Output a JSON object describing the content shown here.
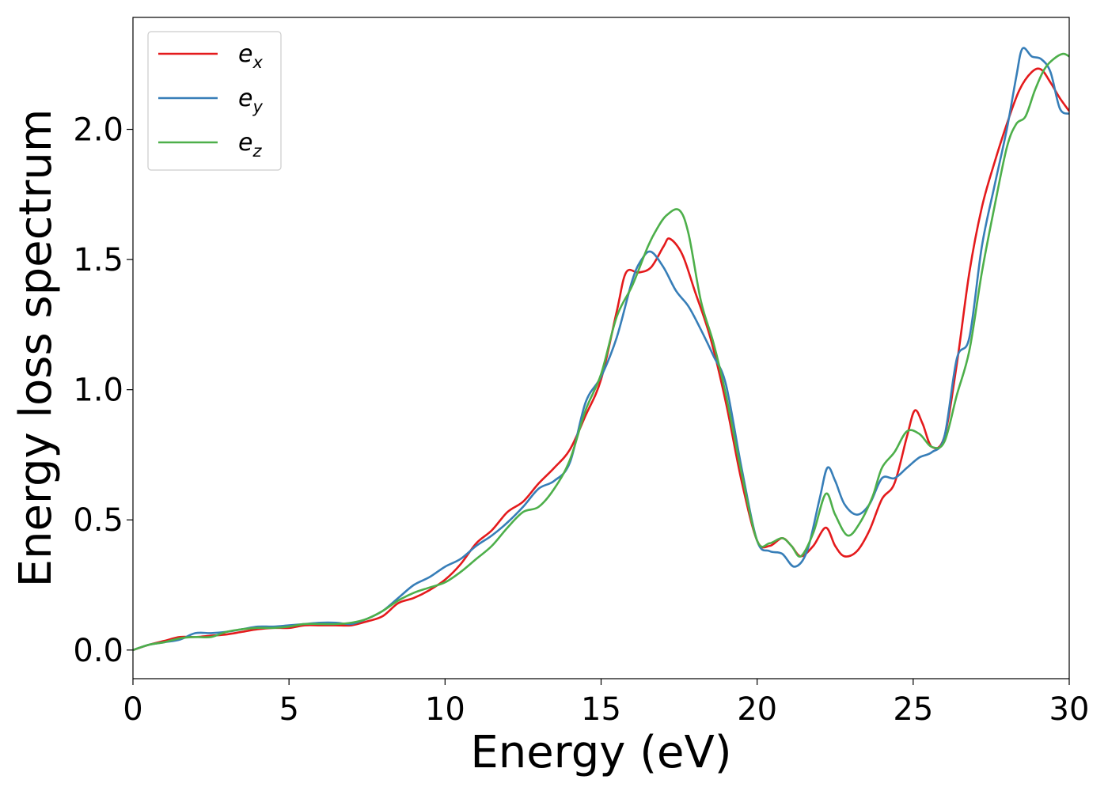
{
  "chart_data": {
    "type": "line",
    "title": "",
    "xlabel": "Energy (eV)",
    "ylabel": "Energy loss spectrum",
    "xlim": [
      0,
      30
    ],
    "ylim": [
      -0.11,
      2.43
    ],
    "xticks": [
      0,
      5,
      10,
      15,
      20,
      25,
      30
    ],
    "yticks": [
      0.0,
      0.5,
      1.0,
      1.5,
      2.0
    ],
    "xtick_labels": [
      "0",
      "5",
      "10",
      "15",
      "20",
      "25",
      "30"
    ],
    "ytick_labels": [
      "0.0",
      "0.5",
      "1.0",
      "1.5",
      "2.0"
    ],
    "grid": false,
    "legend_position": "top-left",
    "series": [
      {
        "name": "e_x",
        "label_base": "e",
        "label_sub": "x",
        "color": "#e41a1c",
        "x": [
          0,
          0.5,
          1,
          1.5,
          2,
          2.5,
          3,
          3.5,
          4,
          4.5,
          5,
          5.5,
          6,
          6.5,
          7,
          7.5,
          8,
          8.5,
          9,
          9.5,
          10,
          10.5,
          11,
          11.5,
          12,
          12.5,
          13,
          13.5,
          14,
          14.5,
          15,
          15.5,
          15.8,
          16.2,
          16.6,
          17,
          17.2,
          17.6,
          18,
          18.5,
          19,
          19.5,
          20,
          20.4,
          20.8,
          21.1,
          21.4,
          21.8,
          22.2,
          22.5,
          22.8,
          23.2,
          23.6,
          24,
          24.4,
          24.8,
          25.05,
          25.3,
          25.6,
          26,
          26.4,
          26.8,
          27.2,
          27.6,
          28,
          28.4,
          28.8,
          29.1,
          29.4,
          29.7,
          30
        ],
        "y": [
          0.0,
          0.02,
          0.035,
          0.05,
          0.05,
          0.055,
          0.06,
          0.07,
          0.08,
          0.085,
          0.085,
          0.095,
          0.095,
          0.095,
          0.095,
          0.11,
          0.13,
          0.18,
          0.2,
          0.23,
          0.27,
          0.33,
          0.41,
          0.46,
          0.53,
          0.57,
          0.64,
          0.7,
          0.77,
          0.9,
          1.04,
          1.3,
          1.45,
          1.45,
          1.47,
          1.55,
          1.58,
          1.52,
          1.38,
          1.2,
          0.95,
          0.65,
          0.42,
          0.4,
          0.43,
          0.4,
          0.36,
          0.4,
          0.47,
          0.4,
          0.36,
          0.38,
          0.46,
          0.58,
          0.64,
          0.82,
          0.92,
          0.87,
          0.78,
          0.82,
          1.1,
          1.45,
          1.7,
          1.87,
          2.02,
          2.15,
          2.22,
          2.23,
          2.18,
          2.12,
          2.07
        ]
      },
      {
        "name": "e_y",
        "label_base": "e",
        "label_sub": "y",
        "color": "#377eb8",
        "x": [
          0,
          0.5,
          1,
          1.5,
          2,
          2.5,
          3,
          3.5,
          4,
          4.5,
          5,
          5.5,
          6,
          6.5,
          7,
          7.5,
          8,
          8.5,
          9,
          9.5,
          10,
          10.5,
          11,
          11.5,
          12,
          12.5,
          13,
          13.5,
          14,
          14.5,
          15,
          15.5,
          16,
          16.3,
          16.6,
          17,
          17.4,
          17.8,
          18.2,
          18.6,
          19,
          19.5,
          20,
          20.4,
          20.8,
          21.2,
          21.6,
          22,
          22.25,
          22.5,
          22.8,
          23.2,
          23.6,
          24,
          24.4,
          24.8,
          25.2,
          25.6,
          26,
          26.4,
          26.8,
          27.2,
          27.6,
          28,
          28.3,
          28.5,
          28.8,
          29.1,
          29.4,
          29.7,
          30
        ],
        "y": [
          0.0,
          0.02,
          0.03,
          0.04,
          0.065,
          0.065,
          0.07,
          0.08,
          0.09,
          0.09,
          0.095,
          0.1,
          0.105,
          0.105,
          0.1,
          0.12,
          0.15,
          0.2,
          0.25,
          0.28,
          0.32,
          0.35,
          0.4,
          0.44,
          0.49,
          0.55,
          0.62,
          0.65,
          0.72,
          0.95,
          1.05,
          1.2,
          1.42,
          1.5,
          1.53,
          1.47,
          1.38,
          1.32,
          1.23,
          1.13,
          1.02,
          0.7,
          0.42,
          0.38,
          0.37,
          0.32,
          0.38,
          0.58,
          0.7,
          0.65,
          0.56,
          0.52,
          0.56,
          0.66,
          0.66,
          0.7,
          0.74,
          0.76,
          0.82,
          1.12,
          1.2,
          1.55,
          1.78,
          2.0,
          2.2,
          2.31,
          2.28,
          2.27,
          2.22,
          2.08,
          2.06
        ]
      },
      {
        "name": "e_z",
        "label_base": "e",
        "label_sub": "z",
        "color": "#4daf4a",
        "x": [
          0,
          0.5,
          1,
          1.5,
          2,
          2.5,
          3,
          3.5,
          4,
          4.5,
          5,
          5.5,
          6,
          6.5,
          7,
          7.5,
          8,
          8.5,
          9,
          9.5,
          10,
          10.5,
          11,
          11.5,
          12,
          12.5,
          13,
          13.5,
          14,
          14.5,
          15,
          15.5,
          16,
          16.5,
          16.8,
          17.1,
          17.5,
          17.8,
          18.2,
          18.6,
          19,
          19.5,
          20,
          20.4,
          20.8,
          21.1,
          21.4,
          21.8,
          22.2,
          22.5,
          22.9,
          23.3,
          23.7,
          24,
          24.4,
          24.8,
          25.2,
          25.6,
          26,
          26.4,
          26.8,
          27.2,
          27.6,
          28,
          28.3,
          28.6,
          28.9,
          29.2,
          29.5,
          29.8,
          30
        ],
        "y": [
          0.0,
          0.02,
          0.03,
          0.045,
          0.05,
          0.05,
          0.07,
          0.08,
          0.085,
          0.085,
          0.09,
          0.1,
          0.1,
          0.1,
          0.105,
          0.12,
          0.15,
          0.19,
          0.22,
          0.24,
          0.26,
          0.3,
          0.35,
          0.4,
          0.47,
          0.53,
          0.55,
          0.62,
          0.73,
          0.92,
          1.06,
          1.28,
          1.4,
          1.55,
          1.62,
          1.67,
          1.69,
          1.6,
          1.34,
          1.18,
          0.98,
          0.68,
          0.42,
          0.41,
          0.43,
          0.4,
          0.36,
          0.45,
          0.6,
          0.52,
          0.44,
          0.49,
          0.59,
          0.7,
          0.76,
          0.84,
          0.83,
          0.78,
          0.8,
          0.98,
          1.15,
          1.45,
          1.7,
          1.93,
          2.02,
          2.05,
          2.15,
          2.23,
          2.27,
          2.29,
          2.28
        ]
      }
    ]
  }
}
